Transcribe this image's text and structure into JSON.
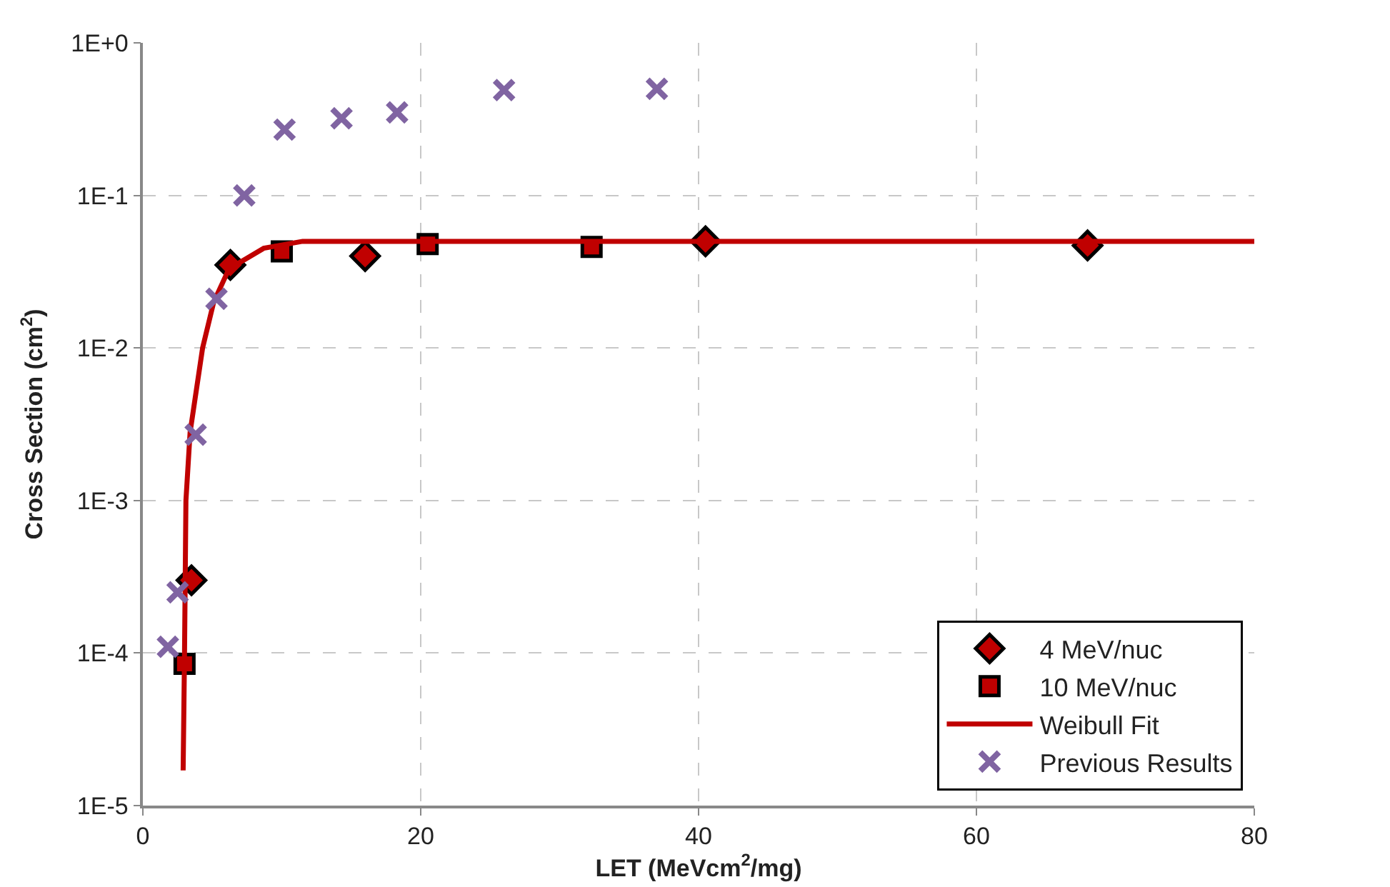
{
  "chart_data": {
    "type": "scatter",
    "xlabel": "LET (MeVcm$^{2}$/mg)",
    "ylabel": "Cross Section (cm$^{2}$)",
    "log": "y",
    "grid": true,
    "legend": "bottom right",
    "xlim": [
      0,
      80
    ],
    "xticks": [
      0,
      20,
      40,
      60,
      80
    ],
    "ylim": [
      1e-05,
      1
    ],
    "yticks": [
      {
        "value": 1e-05,
        "label": "1E-5"
      },
      {
        "value": 0.0001,
        "label": "1E-4"
      },
      {
        "value": 0.001,
        "label": "1E-3"
      },
      {
        "value": 0.01,
        "label": "1E-2"
      },
      {
        "value": 0.1,
        "label": "1E-1"
      },
      {
        "value": 1,
        "label": "1E+0"
      }
    ],
    "series": [
      {
        "name": "4 MeV/nuc",
        "marker": "diamond",
        "color": "#c00000",
        "x": [
          3.5,
          6.3,
          16,
          40.5,
          68
        ],
        "values": [
          0.0003,
          0.035,
          0.04,
          0.05,
          0.047
        ]
      },
      {
        "name": "10 MeV/nuc",
        "marker": "square",
        "color": "#c00000",
        "x": [
          3,
          10,
          20.5,
          32.3
        ],
        "values": [
          8.5e-05,
          0.043,
          0.048,
          0.046
        ]
      },
      {
        "name": "Weibull Fit",
        "type": "line",
        "marker": "none",
        "color": "#c00000",
        "x": [
          2.9,
          3.0,
          3.1,
          3.4,
          4.3,
          5.1,
          6.2,
          8.7,
          11.5,
          80
        ],
        "values": [
          1.7e-05,
          0.0001,
          0.001,
          0.0028,
          0.01,
          0.02,
          0.033,
          0.045,
          0.05,
          0.05
        ]
      },
      {
        "name": "Previous Results",
        "marker": "cross",
        "color": "#8064a2",
        "x": [
          1.8,
          2.5,
          3.8,
          5.3,
          7.3,
          10.2,
          14.3,
          18.3,
          26,
          37
        ],
        "values": [
          0.00011,
          0.00025,
          0.0027,
          0.021,
          0.1,
          0.27,
          0.32,
          0.35,
          0.49,
          0.5
        ]
      }
    ]
  }
}
